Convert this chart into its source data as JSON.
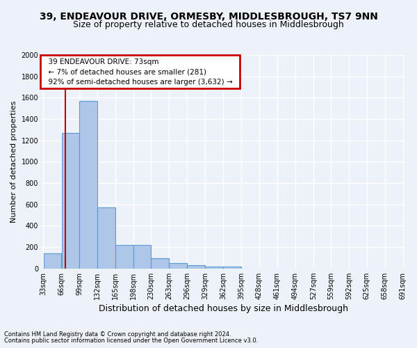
{
  "title_line1": "39, ENDEAVOUR DRIVE, ORMESBY, MIDDLESBROUGH, TS7 9NN",
  "title_line2": "Size of property relative to detached houses in Middlesbrough",
  "xlabel": "Distribution of detached houses by size in Middlesbrough",
  "ylabel": "Number of detached properties",
  "footer_line1": "Contains HM Land Registry data © Crown copyright and database right 2024.",
  "footer_line2": "Contains public sector information licensed under the Open Government Licence v3.0.",
  "annotation_title": "39 ENDEAVOUR DRIVE: 73sqm",
  "annotation_line1": "← 7% of detached houses are smaller (281)",
  "annotation_line2": "92% of semi-detached houses are larger (3,632) →",
  "property_size_sqm": 73,
  "bar_edges": [
    33,
    66,
    99,
    132,
    165,
    198,
    230,
    263,
    296,
    329,
    362,
    395,
    428,
    461,
    494,
    527,
    559,
    592,
    625,
    658,
    691
  ],
  "bar_heights": [
    140,
    1270,
    1570,
    570,
    220,
    220,
    95,
    50,
    30,
    20,
    20,
    0,
    0,
    0,
    0,
    0,
    0,
    0,
    0,
    0
  ],
  "bar_color": "#aec6e8",
  "bar_edge_color": "#5b9bd5",
  "annotation_box_color": "#cc0000",
  "ylim": [
    0,
    2000
  ],
  "yticks": [
    0,
    200,
    400,
    600,
    800,
    1000,
    1200,
    1400,
    1600,
    1800,
    2000
  ],
  "bg_color": "#edf2f9",
  "grid_color": "#ffffff",
  "title_fontsize": 10,
  "subtitle_fontsize": 9,
  "ylabel_fontsize": 8,
  "xlabel_fontsize": 9,
  "footer_fontsize": 6,
  "tick_fontsize": 7,
  "annot_fontsize": 7.5
}
